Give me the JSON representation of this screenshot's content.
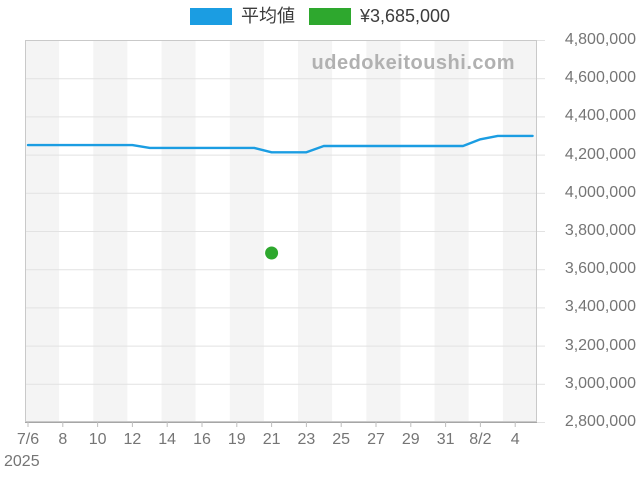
{
  "watermark": "udedokeitoushi.com",
  "legend": {
    "items": [
      {
        "label": "平均値",
        "color": "#1b9de2",
        "type": "line-series"
      },
      {
        "label": "¥3,685,000",
        "color": "#2ea82e",
        "type": "scatter-point"
      }
    ]
  },
  "colors": {
    "line_blue": "#1b9de2",
    "point_green": "#2ea82e",
    "axis_text": "#757575",
    "legend_text": "#3c3c3c",
    "watermark_text": "#b1b1b1",
    "grid_line": "#e2e2e2",
    "plot_border": "#c9c9c9",
    "axis_line": "#a6a6a6",
    "tick_mark": "#bdbdbd",
    "stripe": "#f4f4f4",
    "stripe_alt": "#ffffff"
  },
  "chart_data": {
    "type": "line",
    "title": "",
    "xlabel": "",
    "ylabel": "",
    "legend_position": "top",
    "grid": true,
    "background_stripes": true,
    "ylim": [
      2800000,
      4800000
    ],
    "y_tick_labels": [
      "4,800,000",
      "4,600,000",
      "4,400,000",
      "4,200,000",
      "4,000,000",
      "3,800,000",
      "3,600,000",
      "3,400,000",
      "3,200,000",
      "3,000,000",
      "2,800,000"
    ],
    "x_tick_labels": [
      "7/6",
      "8",
      "10",
      "12",
      "14",
      "16",
      "19",
      "21",
      "23",
      "25",
      "27",
      "29",
      "31",
      "8/2",
      "4"
    ],
    "x_axis_year_label": "2025",
    "x": [
      "7/6",
      "7/7",
      "7/8",
      "7/9",
      "7/10",
      "7/11",
      "7/12",
      "7/13",
      "7/14",
      "7/15",
      "7/16",
      "7/18",
      "7/19",
      "7/20",
      "7/21",
      "7/22",
      "7/23",
      "7/24",
      "7/25",
      "7/26",
      "7/27",
      "7/28",
      "7/29",
      "7/30",
      "7/31",
      "8/1",
      "8/2",
      "8/3",
      "8/4",
      "8/5"
    ],
    "series": [
      {
        "name": "平均値",
        "type": "line",
        "color": "#1b9de2",
        "values": [
          4250000,
          4250000,
          4250000,
          4250000,
          4250000,
          4250000,
          4250000,
          4235000,
          4235000,
          4235000,
          4235000,
          4235000,
          4235000,
          4235000,
          4212000,
          4212000,
          4212000,
          4245000,
          4245000,
          4245000,
          4245000,
          4245000,
          4245000,
          4245000,
          4245000,
          4245000,
          4280000,
          4298000,
          4298000,
          4298000
        ]
      }
    ],
    "scatter": {
      "name": "¥3,685,000",
      "x": "7/21",
      "value": 3685000,
      "color": "#2ea82e"
    }
  }
}
